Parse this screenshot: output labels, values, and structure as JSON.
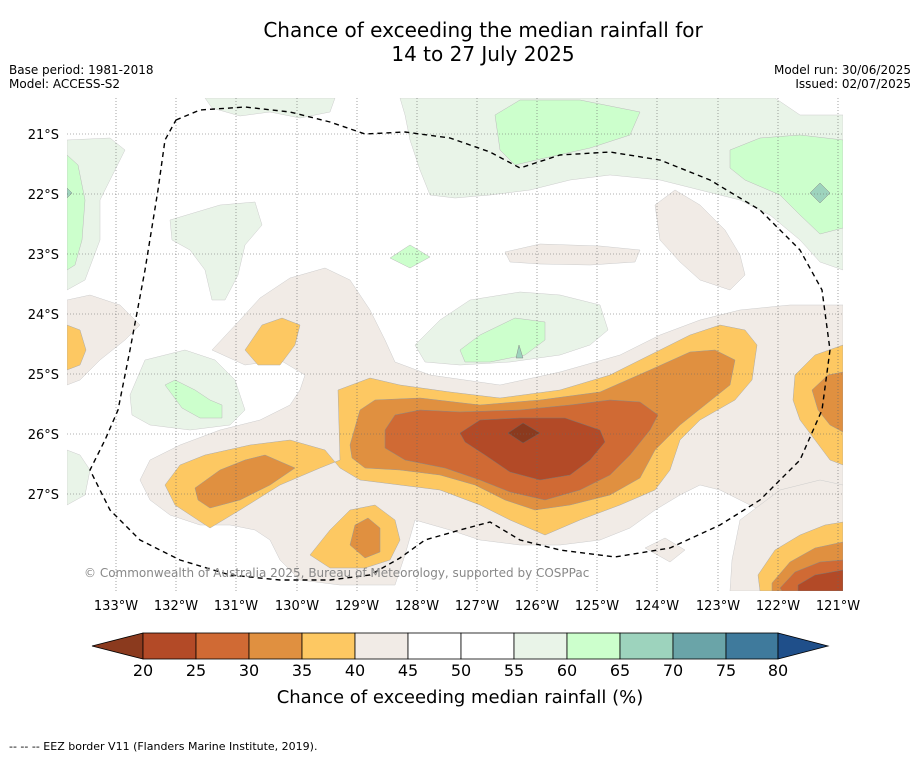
{
  "title_line1": "Chance of exceeding the median rainfall for",
  "title_line2": "14 to 27 July 2025",
  "base_period": "Base period: 1981-2018",
  "model": "Model: ACCESS-S2",
  "model_run": "Model run: 30/06/2025",
  "issued": "Issued: 02/07/2025",
  "copyright": "© Commonwealth of Australia 2025, Bureau of Meteorology, supported by COSPPac",
  "lat_labels": [
    "21°S",
    "22°S",
    "23°S",
    "24°S",
    "25°S",
    "26°S",
    "27°S"
  ],
  "lon_labels": [
    "133°W",
    "132°W",
    "131°W",
    "130°W",
    "129°W",
    "128°W",
    "127°W",
    "126°W",
    "125°W",
    "124°W",
    "123°W",
    "122°W",
    "121°W"
  ],
  "colorbar": {
    "ticks": [
      "20",
      "25",
      "30",
      "35",
      "40",
      "45",
      "50",
      "55",
      "60",
      "65",
      "70",
      "75",
      "80"
    ],
    "title": "Chance of exceeding median rainfall (%)",
    "colors": [
      "#8b3a1e",
      "#b34a27",
      "#d06a34",
      "#e09040",
      "#fdc862",
      "#f1ebe6",
      "#ffffff",
      "#ffffff",
      "#e9f4e8",
      "#ccffcc",
      "#9dd3bd",
      "#6aa4a8",
      "#3f7a9c",
      "#1f4f8a"
    ]
  },
  "footer": "--  --  -- EEZ border V11 (Flanders Marine Institute, 2019)."
}
